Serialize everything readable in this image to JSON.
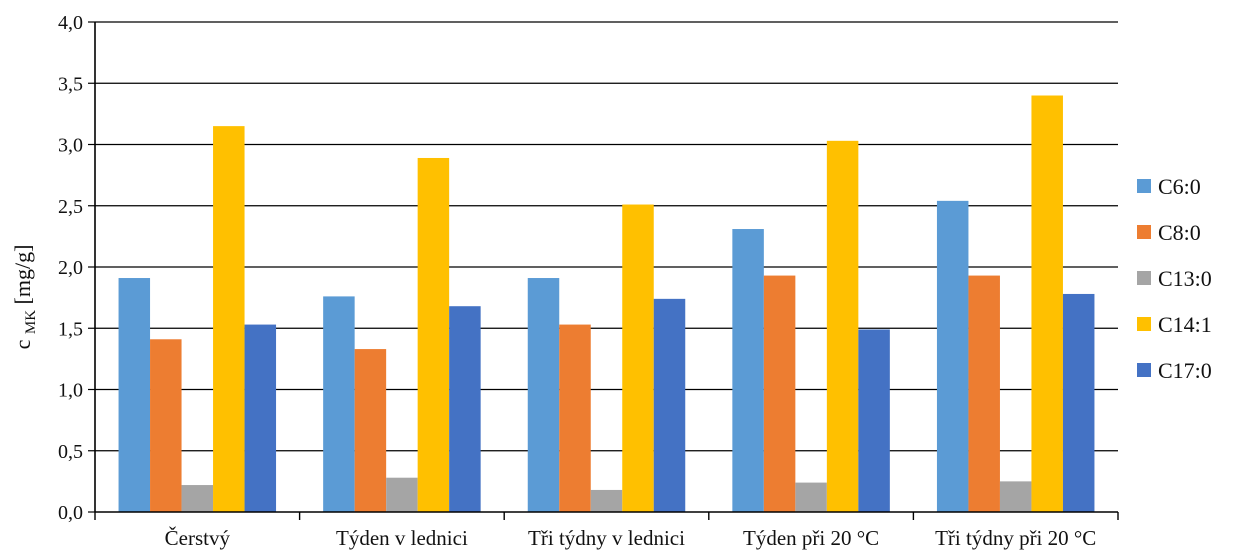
{
  "chart_data": {
    "type": "bar",
    "title": "",
    "xlabel": "",
    "ylabel": {
      "main": "c",
      "subscript": "MK",
      "unit": " [mg/g]"
    },
    "ylim": [
      0,
      4
    ],
    "ytick_step": 0.5,
    "ytick_labels": [
      "0,0",
      "0,5",
      "1,0",
      "1,5",
      "2,0",
      "2,5",
      "3,0",
      "3,5",
      "4,0"
    ],
    "grid": true,
    "legend_position": "right",
    "categories": [
      "Čerstvý",
      "Týden v lednici",
      "Tři týdny v lednici",
      "Týden při 20 °C",
      "Tři týdny při 20 °C"
    ],
    "series": [
      {
        "name": "C6:0",
        "color": "#5b9bd5",
        "values": [
          1.91,
          1.76,
          1.91,
          2.31,
          2.54
        ]
      },
      {
        "name": "C8:0",
        "color": "#ed7d31",
        "values": [
          1.41,
          1.33,
          1.53,
          1.93,
          1.93
        ]
      },
      {
        "name": "C13:0",
        "color": "#a5a5a5",
        "values": [
          0.22,
          0.28,
          0.18,
          0.24,
          0.25
        ]
      },
      {
        "name": "C14:1",
        "color": "#ffc000",
        "values": [
          3.15,
          2.89,
          2.51,
          3.03,
          3.4
        ]
      },
      {
        "name": "C17:0",
        "color": "#4472c4",
        "values": [
          1.53,
          1.68,
          1.74,
          1.49,
          1.78
        ]
      }
    ]
  }
}
